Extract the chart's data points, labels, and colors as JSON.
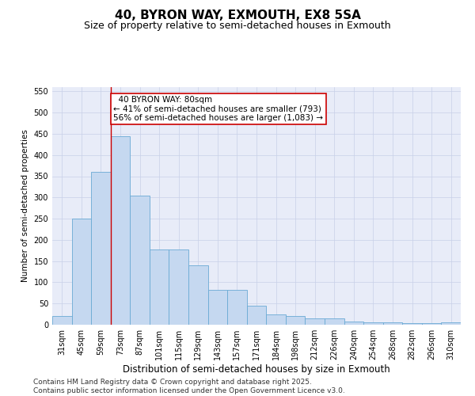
{
  "title": "40, BYRON WAY, EXMOUTH, EX8 5SA",
  "subtitle": "Size of property relative to semi-detached houses in Exmouth",
  "xlabel": "Distribution of semi-detached houses by size in Exmouth",
  "ylabel": "Number of semi-detached properties",
  "categories": [
    "31sqm",
    "45sqm",
    "59sqm",
    "73sqm",
    "87sqm",
    "101sqm",
    "115sqm",
    "129sqm",
    "143sqm",
    "157sqm",
    "171sqm",
    "184sqm",
    "198sqm",
    "212sqm",
    "226sqm",
    "240sqm",
    "254sqm",
    "268sqm",
    "282sqm",
    "296sqm",
    "310sqm"
  ],
  "values": [
    20,
    250,
    360,
    445,
    305,
    178,
    178,
    140,
    82,
    82,
    45,
    25,
    20,
    15,
    15,
    8,
    6,
    6,
    3,
    3,
    5
  ],
  "bar_color": "#c5d8f0",
  "bar_edge_color": "#6aaad4",
  "highlight_index": 3,
  "highlight_line_color": "#cc0000",
  "annotation_text": "  40 BYRON WAY: 80sqm\n← 41% of semi-detached houses are smaller (793)\n56% of semi-detached houses are larger (1,083) →",
  "annotation_box_color": "#ffffff",
  "annotation_box_edge_color": "#cc0000",
  "ylim": [
    0,
    560
  ],
  "yticks": [
    0,
    50,
    100,
    150,
    200,
    250,
    300,
    350,
    400,
    450,
    500,
    550
  ],
  "grid_color": "#c8d0e8",
  "background_color": "#e8ecf8",
  "footer_line1": "Contains HM Land Registry data © Crown copyright and database right 2025.",
  "footer_line2": "Contains public sector information licensed under the Open Government Licence v3.0.",
  "title_fontsize": 11,
  "subtitle_fontsize": 9,
  "xlabel_fontsize": 8.5,
  "ylabel_fontsize": 7.5,
  "tick_fontsize": 7,
  "annotation_fontsize": 7.5,
  "footer_fontsize": 6.5
}
